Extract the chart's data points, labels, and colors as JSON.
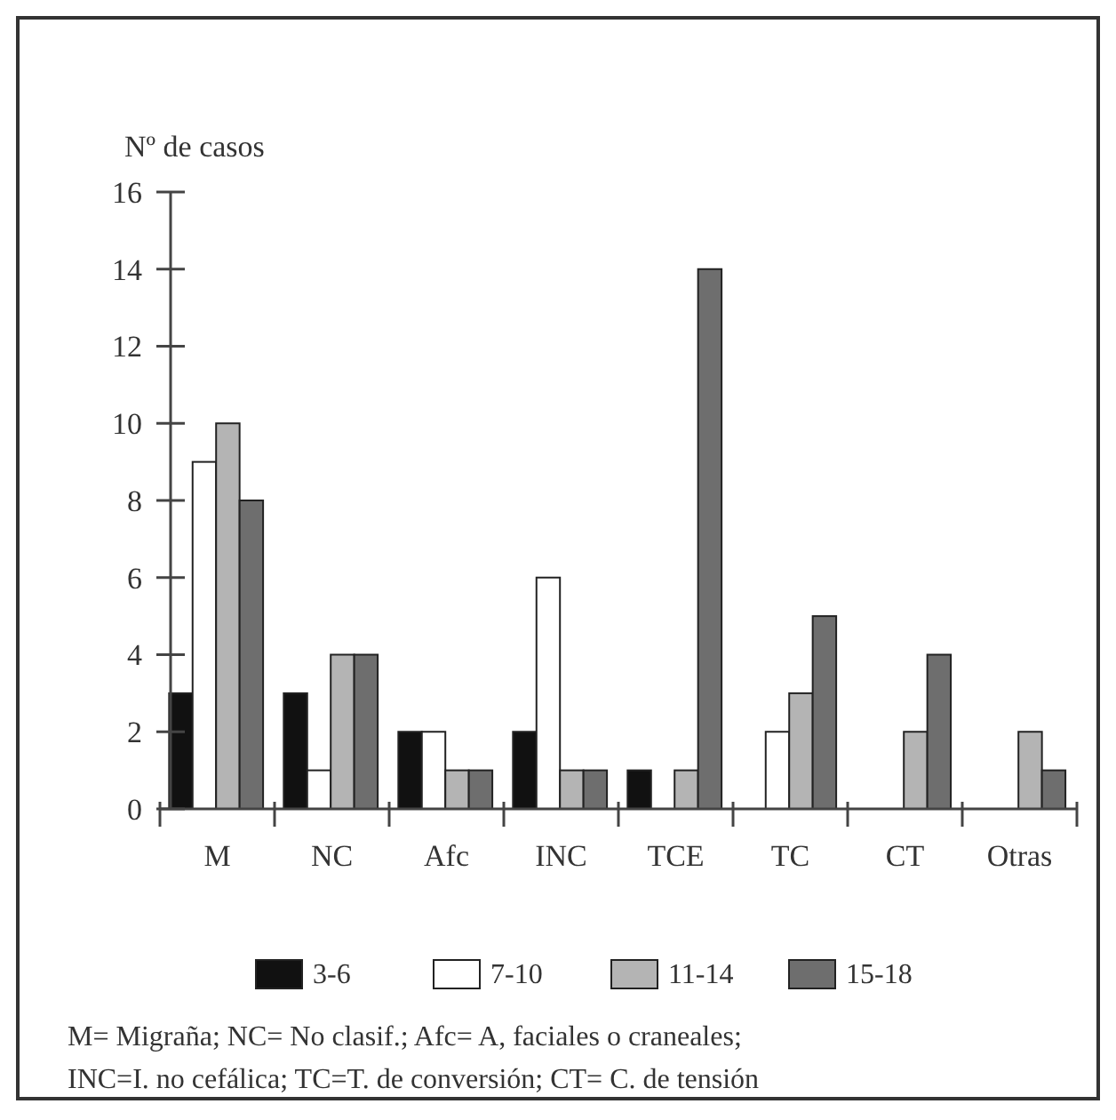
{
  "chart_data": {
    "type": "bar",
    "ylabel": "Nº de casos",
    "categories": [
      "M",
      "NC",
      "Afc",
      "INC",
      "TCE",
      "TC",
      "CT",
      "Otras"
    ],
    "series": [
      {
        "name": "3-6",
        "color": "#111111",
        "values": [
          3,
          3,
          2,
          2,
          1,
          null,
          null,
          null
        ]
      },
      {
        "name": "7-10",
        "color": "#ffffff",
        "values": [
          9,
          1,
          2,
          6,
          null,
          2,
          null,
          null
        ]
      },
      {
        "name": "11-14",
        "color": "#b4b4b4",
        "values": [
          10,
          4,
          1,
          1,
          1,
          3,
          2,
          2
        ]
      },
      {
        "name": "15-18",
        "color": "#6e6e6e",
        "values": [
          8,
          4,
          1,
          1,
          14,
          5,
          4,
          1
        ]
      }
    ],
    "ylim": [
      0,
      16
    ],
    "yticks": [
      0,
      2,
      4,
      6,
      8,
      10,
      12,
      14,
      16
    ],
    "grid": false,
    "legend": "bottom",
    "annotations": [
      "M= Migraña; NC= No clasif.; Afc= A, faciales o craneales;",
      "INC=I. no cefálica; TC=T. de conversión; CT= C. de tensión"
    ]
  }
}
